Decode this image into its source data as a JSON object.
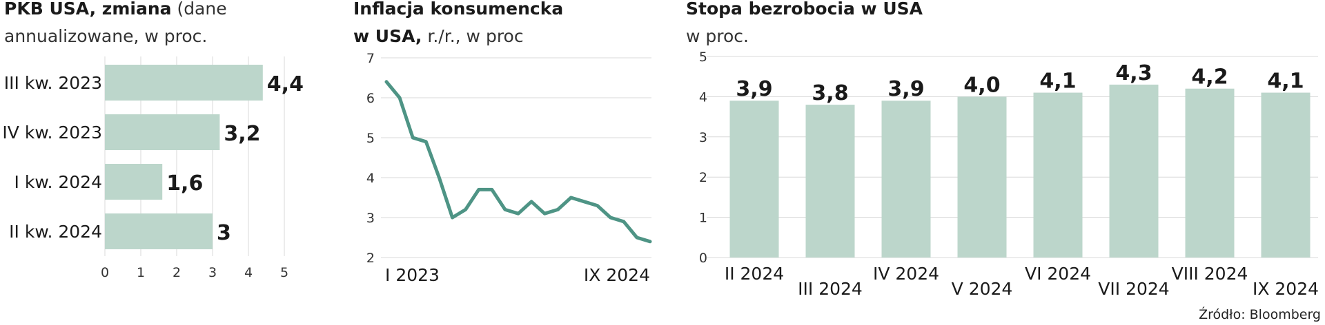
{
  "source": "Źródło: Bloomberg",
  "colors": {
    "bar": "#bcd6cb",
    "line": "#4e9485",
    "axis": "#666666",
    "grid": "#d8d8d8"
  },
  "chart_data": [
    {
      "type": "bar",
      "orientation": "horizontal",
      "title_bold": "PKB USA, zmiana",
      "title_light": "(dane",
      "title_line2": "annualizowane, w proc.",
      "categories": [
        "III kw. 2023",
        "IV kw. 2023",
        "I kw. 2024",
        "II kw. 2024"
      ],
      "values": [
        4.4,
        3.2,
        1.6,
        3
      ],
      "value_labels": [
        "4,4",
        "3,2",
        "1,6",
        "3"
      ],
      "ticks": [
        "0",
        "1",
        "2",
        "3",
        "4",
        "5"
      ],
      "xlim": [
        0,
        5
      ],
      "grid": true
    },
    {
      "type": "line",
      "title_line1": "Inflacja konsumencka",
      "title_bold2": "w USA,",
      "title_light2": "r./r., w proc",
      "x_labels": [
        "I 2023",
        "IX 2024"
      ],
      "values": [
        6.4,
        6.0,
        5.0,
        4.9,
        4.0,
        3.0,
        3.2,
        3.7,
        3.7,
        3.2,
        3.1,
        3.4,
        3.1,
        3.2,
        3.5,
        3.4,
        3.3,
        3.0,
        2.9,
        2.5,
        2.4
      ],
      "ticks": [
        "2",
        "3",
        "4",
        "5",
        "6",
        "7"
      ],
      "ylim": [
        2,
        7
      ],
      "grid": true
    },
    {
      "type": "bar",
      "title": "Stopa bezrobocia w USA",
      "subtitle": "w proc.",
      "categories": [
        "II 2024",
        "III 2024",
        "IV 2024",
        "V 2024",
        "VI 2024",
        "VII 2024",
        "VIII 2024",
        "IX 2024"
      ],
      "values": [
        3.9,
        3.8,
        3.9,
        4.0,
        4.1,
        4.3,
        4.2,
        4.1
      ],
      "value_labels": [
        "3,9",
        "3,8",
        "3,9",
        "4,0",
        "4,1",
        "4,3",
        "4,2",
        "4,1"
      ],
      "ticks": [
        "0",
        "1",
        "2",
        "3",
        "4",
        "5"
      ],
      "ylim": [
        0,
        5
      ],
      "grid": true
    }
  ]
}
